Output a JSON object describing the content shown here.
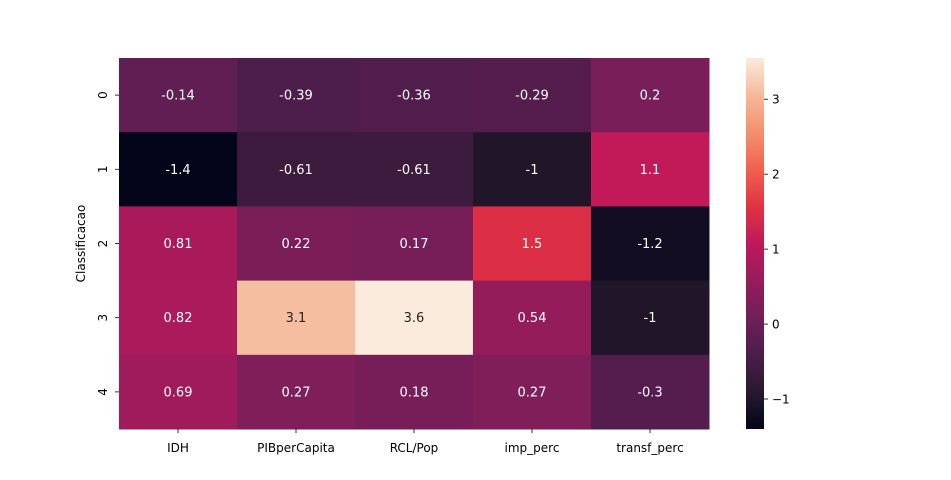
{
  "chart_data": {
    "type": "heatmap",
    "title": "",
    "xlabel": "",
    "ylabel": "Classificacao",
    "x_categories": [
      "IDH",
      "PIBperCapita",
      "RCL/Pop",
      "imp_perc",
      "transf_perc"
    ],
    "y_categories": [
      "0",
      "1",
      "2",
      "3",
      "4"
    ],
    "values": [
      [
        -0.14,
        -0.39,
        -0.36,
        -0.29,
        0.2
      ],
      [
        -1.4,
        -0.61,
        -0.61,
        -1,
        1.1
      ],
      [
        0.81,
        0.22,
        0.17,
        1.5,
        -1.2
      ],
      [
        0.82,
        3.1,
        3.6,
        0.54,
        -1
      ],
      [
        0.69,
        0.27,
        0.18,
        0.27,
        -0.3
      ]
    ],
    "annotations": [
      [
        "-0.14",
        "-0.39",
        "-0.36",
        "-0.29",
        "0.2"
      ],
      [
        "-1.4",
        "-0.61",
        "-0.61",
        "-1",
        "1.1"
      ],
      [
        "0.81",
        "0.22",
        "0.17",
        "1.5",
        "-1.2"
      ],
      [
        "0.82",
        "3.1",
        "3.6",
        "0.54",
        "-1"
      ],
      [
        "0.69",
        "0.27",
        "0.18",
        "0.27",
        "-0.3"
      ]
    ],
    "colorbar": {
      "vmin": -1.4,
      "vmax": 3.55,
      "ticks": [
        -1,
        0,
        1,
        2,
        3
      ],
      "tick_labels": [
        "−1",
        "0",
        "1",
        "2",
        "3"
      ]
    },
    "colormap": "rocket",
    "grid": false
  }
}
